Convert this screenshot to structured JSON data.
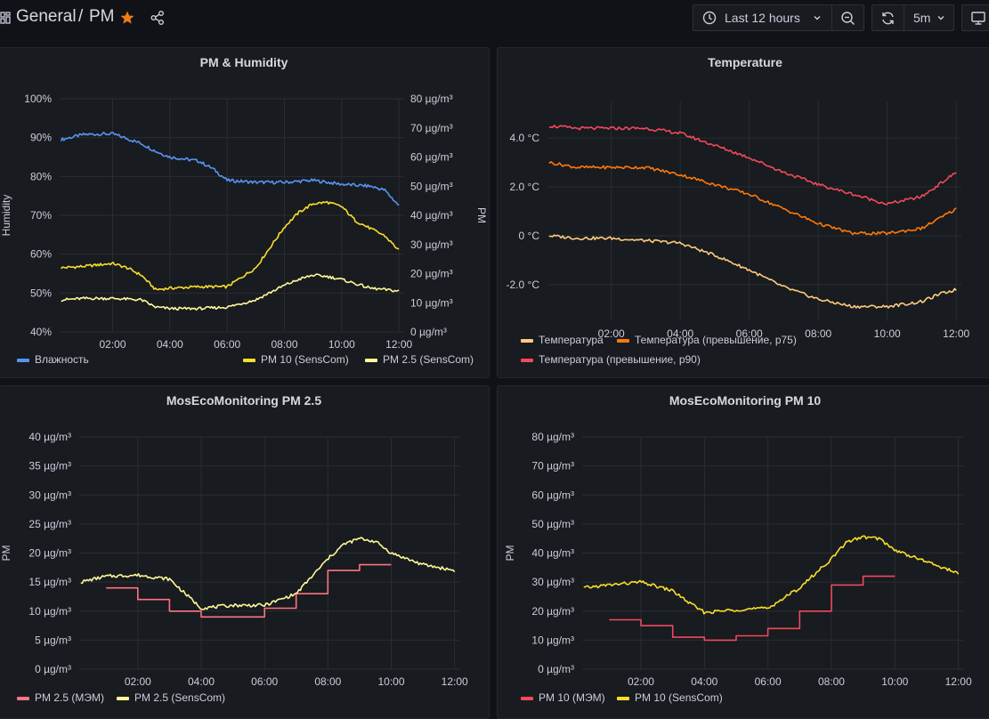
{
  "header": {
    "folder": "General",
    "separator": "/",
    "dashboard": "PM",
    "time_range": "Last 12 hours",
    "refresh_interval": "5m"
  },
  "panels": [
    {
      "id": "p1",
      "title": "PM & Humidity",
      "left_axis_label": "Humidity",
      "right_axis_label": "PM",
      "x_ticks": [
        "02:00",
        "04:00",
        "06:00",
        "08:00",
        "10:00",
        "12:00"
      ],
      "left_ticks": [
        "40%",
        "50%",
        "60%",
        "70%",
        "80%",
        "90%",
        "100%"
      ],
      "right_ticks": [
        "0 µg/m³",
        "10 µg/m³",
        "20 µg/m³",
        "30 µg/m³",
        "40 µg/m³",
        "50 µg/m³",
        "60 µg/m³",
        "70 µg/m³",
        "80 µg/m³"
      ],
      "legend": [
        {
          "name": "Влажность",
          "color": "#5794f2"
        },
        {
          "name": "PM 10 (SensCom)",
          "color": "#fade2a"
        },
        {
          "name": "PM 2.5 (SensCom)",
          "color": "#fff899"
        }
      ]
    },
    {
      "id": "p2",
      "title": "Temperature",
      "x_ticks": [
        "02:00",
        "04:00",
        "06:00",
        "08:00",
        "10:00",
        "12:00"
      ],
      "left_ticks": [
        "-2.0 °C",
        "0 °C",
        "2.0 °C",
        "4.0 °C"
      ],
      "legend": [
        {
          "name": "Температура",
          "color": "#ffcb7d"
        },
        {
          "name": "Температура (превышение, p75)",
          "color": "#ff780a"
        },
        {
          "name": "Температура (превышение, p90)",
          "color": "#f2495c"
        }
      ]
    },
    {
      "id": "p3",
      "title": "MosEcoMonitoring PM 2.5",
      "left_axis_label": "PM",
      "x_ticks": [
        "02:00",
        "04:00",
        "06:00",
        "08:00",
        "10:00",
        "12:00"
      ],
      "left_ticks": [
        "0 µg/m³",
        "5 µg/m³",
        "10 µg/m³",
        "15 µg/m³",
        "20 µg/m³",
        "25 µg/m³",
        "30 µg/m³",
        "35 µg/m³",
        "40 µg/m³"
      ],
      "legend": [
        {
          "name": "PM 2.5 (МЭМ)",
          "color": "#ff7383"
        },
        {
          "name": "PM 2.5 (SensCom)",
          "color": "#fff899"
        }
      ]
    },
    {
      "id": "p4",
      "title": "MosEcoMonitoring PM 10",
      "left_axis_label": "PM",
      "x_ticks": [
        "02:00",
        "04:00",
        "06:00",
        "08:00",
        "10:00",
        "12:00"
      ],
      "left_ticks": [
        "0 µg/m³",
        "10 µg/m³",
        "20 µg/m³",
        "30 µg/m³",
        "40 µg/m³",
        "50 µg/m³",
        "60 µg/m³",
        "70 µg/m³",
        "80 µg/m³"
      ],
      "legend": [
        {
          "name": "PM 10 (МЭМ)",
          "color": "#f2495c"
        },
        {
          "name": "PM 10 (SensCom)",
          "color": "#fade2a"
        }
      ]
    }
  ],
  "chart_data": [
    {
      "type": "line",
      "title": "PM & Humidity",
      "x_unit": "hours",
      "xlim": [
        0.15,
        12.15
      ],
      "ylim_left": [
        40,
        100
      ],
      "ylim_right": [
        0,
        80
      ],
      "grid": true,
      "legend_position": "bottom",
      "series": [
        {
          "name": "Влажность",
          "axis": "left",
          "color": "#5794f2",
          "x": [
            0.2,
            1,
            2,
            3,
            3.5,
            4,
            5,
            5.5,
            6,
            7,
            8,
            9,
            10,
            11,
            11.5,
            12
          ],
          "y": [
            89.5,
            90.8,
            91,
            88.5,
            86.5,
            85,
            84,
            82,
            79,
            78.5,
            78.5,
            79,
            78,
            77.5,
            76.5,
            72.5
          ]
        },
        {
          "name": "PM 10 (SensCom)",
          "axis": "right",
          "color": "#fade2a",
          "x": [
            0.2,
            1,
            2,
            2.5,
            3,
            3.5,
            4,
            5,
            6,
            7,
            8,
            8.5,
            9,
            9.5,
            10,
            10.5,
            11,
            11.5,
            12
          ],
          "y": [
            22,
            22.5,
            23.5,
            22,
            19.5,
            14.5,
            15,
            15.5,
            15.5,
            22,
            36,
            41,
            44,
            44.5,
            43,
            38,
            35.5,
            33,
            28
          ]
        },
        {
          "name": "PM 2.5 (SensCom)",
          "axis": "right",
          "color": "#fff899",
          "x": [
            0.2,
            1,
            2,
            3,
            3.5,
            4,
            5,
            6,
            7,
            8,
            8.5,
            9,
            9.5,
            10,
            11,
            12
          ],
          "y": [
            11,
            11.5,
            11.5,
            11,
            8.5,
            8,
            8,
            8.5,
            11,
            16,
            18,
            19.5,
            19,
            18,
            15,
            14
          ]
        }
      ]
    },
    {
      "type": "line",
      "title": "Temperature",
      "x_unit": "hours",
      "xlim": [
        0.15,
        12.15
      ],
      "ylim": [
        -3.5,
        5.5
      ],
      "grid": true,
      "legend_position": "bottom",
      "series": [
        {
          "name": "Температура",
          "color": "#ffcb7d",
          "x": [
            0.2,
            1,
            2,
            3,
            4,
            5,
            6,
            7,
            8,
            9,
            10,
            11,
            11.5,
            12
          ],
          "y": [
            0,
            -0.1,
            -0.1,
            -0.2,
            -0.3,
            -0.8,
            -1.4,
            -2.1,
            -2.6,
            -2.9,
            -2.9,
            -2.7,
            -2.4,
            -2.2
          ]
        },
        {
          "name": "Температура (превышение, p75)",
          "color": "#ff780a",
          "x": [
            0.2,
            1,
            2,
            3,
            4,
            5,
            6,
            7,
            8,
            9,
            10,
            11,
            11.5,
            12
          ],
          "y": [
            3,
            2.8,
            2.8,
            2.8,
            2.5,
            2.1,
            1.7,
            1.1,
            0.5,
            0.1,
            0.1,
            0.3,
            0.7,
            1.1
          ]
        },
        {
          "name": "Температура (превышение, p90)",
          "color": "#f2495c",
          "x": [
            0.2,
            1,
            2,
            3,
            4,
            5,
            6,
            7,
            8,
            9,
            10,
            11,
            11.5,
            12
          ],
          "y": [
            4.5,
            4.4,
            4.4,
            4.4,
            4.2,
            3.7,
            3.2,
            2.6,
            2.1,
            1.7,
            1.3,
            1.6,
            2.1,
            2.6
          ]
        }
      ]
    },
    {
      "type": "line",
      "title": "MosEcoMonitoring PM 2.5",
      "x_unit": "hours",
      "xlim": [
        0.15,
        12.15
      ],
      "ylim": [
        0,
        40
      ],
      "grid": true,
      "legend_position": "bottom",
      "series": [
        {
          "name": "PM 2.5 (МЭМ)",
          "color": "#ff7383",
          "step": true,
          "x": [
            1,
            2,
            3,
            4,
            5,
            6,
            7,
            8,
            9,
            10
          ],
          "y": [
            14,
            12,
            10,
            9,
            9,
            10.5,
            13,
            17,
            18,
            18
          ]
        },
        {
          "name": "PM 2.5 (SensCom)",
          "color": "#fff899",
          "x": [
            0.2,
            1,
            2,
            3,
            3.5,
            4,
            5,
            6,
            7,
            8,
            8.5,
            9,
            9.5,
            10,
            11,
            12
          ],
          "y": [
            15,
            16,
            16.2,
            15.5,
            13,
            10.5,
            11,
            11,
            13,
            19,
            21.5,
            22.5,
            22,
            20,
            18,
            17
          ]
        }
      ]
    },
    {
      "type": "line",
      "title": "MosEcoMonitoring PM 10",
      "x_unit": "hours",
      "xlim": [
        0.15,
        12.15
      ],
      "ylim": [
        0,
        80
      ],
      "grid": true,
      "legend_position": "bottom",
      "series": [
        {
          "name": "PM 10 (МЭМ)",
          "color": "#f2495c",
          "step": true,
          "x": [
            1,
            2,
            3,
            4,
            5,
            6,
            7,
            8,
            9,
            10
          ],
          "y": [
            17,
            15,
            11,
            10,
            11.5,
            14,
            20,
            29,
            32,
            32
          ]
        },
        {
          "name": "PM 10 (SensCom)",
          "color": "#fade2a",
          "x": [
            0.2,
            1,
            2,
            3,
            3.5,
            4,
            5,
            6,
            7,
            8,
            8.5,
            9,
            9.5,
            10,
            11,
            12
          ],
          "y": [
            28,
            29,
            30,
            27,
            23,
            19.5,
            20.5,
            21,
            28,
            38,
            44,
            45.5,
            45,
            41,
            37,
            33
          ]
        }
      ]
    }
  ]
}
